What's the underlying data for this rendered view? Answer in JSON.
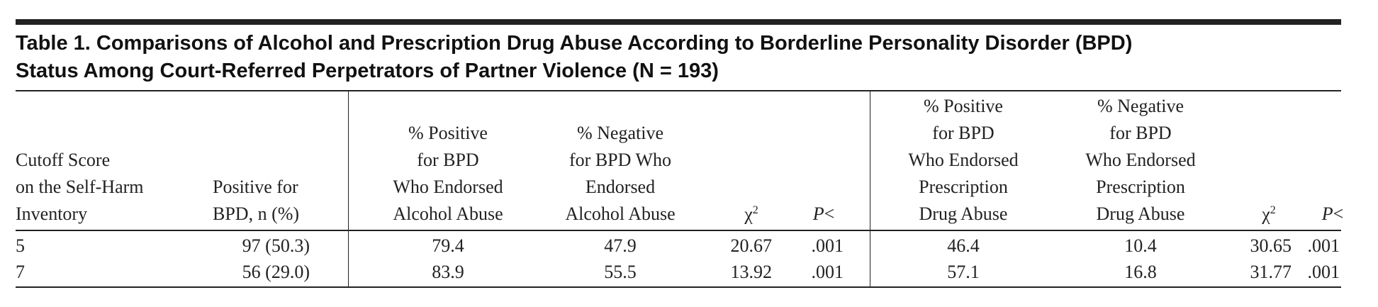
{
  "header": {
    "title_line1": "Table 1. Comparisons of Alcohol and Prescription Drug Abuse According to Borderline Personality Disorder (BPD)",
    "title_line2": "Status Among Court-Referred Perpetrators of Partner Violence (N = 193)"
  },
  "table": {
    "columns": [
      {
        "lines": [
          "Cutoff Score",
          "on the Self-Harm",
          "Inventory"
        ]
      },
      {
        "lines": [
          "Positive for",
          "BPD, n (%)"
        ]
      },
      {
        "lines": [
          "% Positive",
          "for BPD",
          "Who Endorsed",
          "Alcohol Abuse"
        ]
      },
      {
        "lines": [
          "% Negative",
          "for BPD Who",
          "Endorsed",
          "Alcohol Abuse"
        ]
      },
      {
        "symbol": "χ",
        "sup": "2"
      },
      {
        "italic": "P",
        "rest": "<"
      },
      {
        "lines": [
          "% Positive",
          "for BPD",
          "Who Endorsed",
          "Prescription",
          "Drug Abuse"
        ]
      },
      {
        "lines": [
          "% Negative",
          "for BPD",
          "Who Endorsed",
          "Prescription",
          "Drug Abuse"
        ]
      },
      {
        "symbol": "χ",
        "sup": "2"
      },
      {
        "italic": "P",
        "rest": "<"
      }
    ],
    "rows": [
      [
        "5",
        "97 (50.3)",
        "79.4",
        "47.9",
        "20.67",
        ".001",
        "46.4",
        "10.4",
        "30.65",
        ".001"
      ],
      [
        "7",
        "56 (29.0)",
        "83.9",
        "55.5",
        "13.92",
        ".001",
        "57.1",
        "16.8",
        "31.77",
        ".001"
      ]
    ]
  }
}
